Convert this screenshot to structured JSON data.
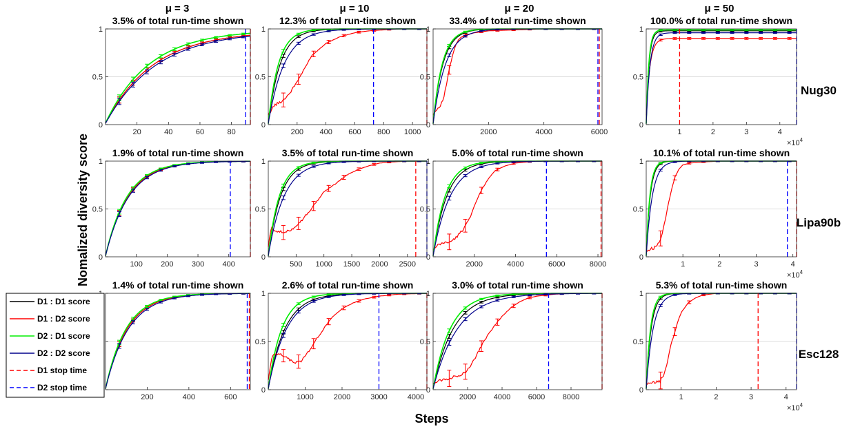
{
  "figure": {
    "ylabel": "Nomalized diversity score",
    "xlabel": "Steps",
    "mu_titles": [
      "μ = 3",
      "μ = 10",
      "μ = 20",
      "μ = 50"
    ],
    "row_labels": [
      "Nug30",
      "Lipa90b",
      "Esc128"
    ],
    "exponent_label": "×10^4",
    "legend": [
      {
        "label": "D1 : D1 score",
        "color": "#000000",
        "style": "solid"
      },
      {
        "label": "D1 : D2 score",
        "color": "#ff0000",
        "style": "solid"
      },
      {
        "label": "D2 : D1 score",
        "color": "#00ee00",
        "style": "solid"
      },
      {
        "label": "D2 : D2 score",
        "color": "#00008b",
        "style": "solid"
      },
      {
        "label": "D1 stop time",
        "color": "#ff0000",
        "style": "dashed"
      },
      {
        "label": "D2 stop time",
        "color": "#0000ff",
        "style": "dashed"
      }
    ],
    "colors": {
      "d1d1": "#000000",
      "d1d2": "#ff0000",
      "d2d1": "#00ee00",
      "d2d2": "#00008b",
      "d1stop": "#ff0000",
      "d2stop": "#0000ff"
    }
  },
  "chart_data": [
    {
      "type": "line",
      "row": 0,
      "col": 0,
      "title": "3.5% of total run-time shown",
      "xlim": [
        0,
        92
      ],
      "xticks": [
        20,
        40,
        60,
        80
      ],
      "ylim": [
        0,
        1
      ],
      "yticks": [
        0,
        0.5,
        1
      ],
      "ytick_labels": [
        "0",
        "0.5",
        "1"
      ],
      "d1_stop": 92,
      "d2_stop": 89,
      "series": [
        {
          "name": "D1 : D1 score",
          "kind": "curve",
          "v": [
            0.015,
            0.98,
            0.033
          ]
        },
        {
          "name": "D1 : D2 score",
          "kind": "curve",
          "v": [
            0.015,
            0.98,
            0.033
          ]
        },
        {
          "name": "D2 : D1 score",
          "kind": "curve",
          "v": [
            0.016,
            0.99,
            0.036
          ]
        },
        {
          "name": "D2 : D2 score",
          "kind": "curve",
          "v": [
            0.012,
            0.98,
            0.031
          ]
        }
      ]
    },
    {
      "type": "line",
      "row": 0,
      "col": 1,
      "title": "12.3% of total run-time shown",
      "xlim": [
        0,
        1100
      ],
      "xticks": [
        200,
        400,
        600,
        800,
        1000
      ],
      "ylim": [
        0,
        1
      ],
      "yticks": [
        0,
        0.5,
        1
      ],
      "ytick_labels": [
        "0",
        "0.5",
        "1"
      ],
      "d1_stop": 1100,
      "d2_stop": 730,
      "series": [
        {
          "name": "D1 : D1 score",
          "kind": "curve",
          "v": [
            0.01,
            1.0,
            0.012
          ]
        },
        {
          "name": "D1 : D2 score",
          "kind": "points",
          "x": [
            0,
            40,
            100,
            150,
            200,
            250,
            300,
            400,
            500,
            600,
            700,
            800,
            900,
            1000,
            1100
          ],
          "y": [
            0.1,
            0.2,
            0.25,
            0.33,
            0.45,
            0.58,
            0.72,
            0.85,
            0.92,
            0.96,
            0.98,
            0.99,
            1.0,
            1.0,
            1.0
          ]
        },
        {
          "name": "D2 : D1 score",
          "kind": "curve",
          "v": [
            0.01,
            1.0,
            0.014
          ]
        },
        {
          "name": "D2 : D2 score",
          "kind": "curve",
          "v": [
            0.01,
            1.0,
            0.009
          ]
        }
      ]
    },
    {
      "type": "line",
      "row": 0,
      "col": 2,
      "title": "33.4% of total run-time shown",
      "xlim": [
        0,
        6100
      ],
      "xticks": [
        2000,
        4000,
        6000
      ],
      "ylim": [
        0,
        1
      ],
      "yticks": [
        0,
        0.5,
        1
      ],
      "ytick_labels": [
        "0",
        "0.5",
        "1"
      ],
      "d1_stop": 6000,
      "d2_stop": 5950,
      "series": [
        {
          "name": "D1 : D1 score",
          "kind": "curve",
          "v": [
            0.01,
            1.0,
            0.0028
          ]
        },
        {
          "name": "D1 : D2 score",
          "kind": "points",
          "x": [
            0,
            100,
            200,
            300,
            400,
            500,
            600,
            700,
            800,
            900,
            1000,
            1200,
            1500,
            2000,
            3000,
            4000,
            6100
          ],
          "y": [
            0.1,
            0.15,
            0.18,
            0.22,
            0.3,
            0.45,
            0.6,
            0.72,
            0.82,
            0.88,
            0.91,
            0.94,
            0.96,
            0.98,
            0.99,
            1.0,
            1.0
          ]
        },
        {
          "name": "D2 : D1 score",
          "kind": "curve",
          "v": [
            0.01,
            1.0,
            0.003
          ]
        },
        {
          "name": "D2 : D2 score",
          "kind": "curve",
          "v": [
            0.01,
            1.0,
            0.0022
          ]
        }
      ]
    },
    {
      "type": "line",
      "row": 0,
      "col": 3,
      "title": "100.0% of total run-time shown",
      "xlim": [
        0,
        45000
      ],
      "xticks": [
        10000,
        20000,
        30000,
        40000
      ],
      "xtick_labels": [
        "1",
        "2",
        "3",
        "4"
      ],
      "ylim": [
        0,
        1
      ],
      "yticks": [
        0,
        0.5,
        1
      ],
      "ytick_labels": [
        "0",
        "0.5",
        "1"
      ],
      "d1_stop": 10000,
      "d2_stop": 45000,
      "exponent": true,
      "series": [
        {
          "name": "D1 : D1 score",
          "kind": "curve",
          "v": [
            0.01,
            0.98,
            0.0012
          ]
        },
        {
          "name": "D1 : D2 score",
          "kind": "curve",
          "v": [
            0.1,
            0.9,
            0.0009
          ]
        },
        {
          "name": "D2 : D1 score",
          "kind": "curve",
          "v": [
            0.01,
            0.99,
            0.0013
          ]
        },
        {
          "name": "D2 : D2 score",
          "kind": "curve",
          "v": [
            0.01,
            0.96,
            0.0009
          ]
        }
      ]
    },
    {
      "type": "line",
      "row": 1,
      "col": 0,
      "title": "1.9% of total run-time shown",
      "xlim": [
        0,
        470
      ],
      "xticks": [
        100,
        200,
        300,
        400
      ],
      "ylim": [
        0,
        1
      ],
      "yticks": [
        0,
        0.5,
        1
      ],
      "ytick_labels": [
        "0",
        "0.5",
        "1"
      ],
      "d1_stop": 470,
      "d2_stop": 405,
      "series": [
        {
          "name": "D1 : D1 score",
          "kind": "curve",
          "v": [
            0.01,
            1.0,
            0.0135
          ]
        },
        {
          "name": "D1 : D2 score",
          "kind": "curve",
          "v": [
            0.01,
            1.0,
            0.0135
          ]
        },
        {
          "name": "D2 : D1 score",
          "kind": "curve",
          "v": [
            0.01,
            1.0,
            0.014
          ]
        },
        {
          "name": "D2 : D2 score",
          "kind": "curve",
          "v": [
            0.01,
            1.0,
            0.013
          ]
        }
      ]
    },
    {
      "type": "line",
      "row": 1,
      "col": 1,
      "title": "3.5% of total run-time shown",
      "xlim": [
        0,
        2850
      ],
      "xticks": [
        500,
        1000,
        1500,
        2000,
        2500
      ],
      "ylim": [
        0,
        1
      ],
      "yticks": [
        0,
        0.5,
        1
      ],
      "ytick_labels": [
        "0",
        "0.5",
        "1"
      ],
      "d1_stop": 2650,
      "d2_stop": 2850,
      "series": [
        {
          "name": "D1 : D1 score",
          "kind": "curve",
          "v": [
            0.01,
            1.0,
            0.0045
          ]
        },
        {
          "name": "D1 : D2 score",
          "kind": "points",
          "x": [
            0,
            50,
            150,
            300,
            450,
            600,
            700,
            800,
            900,
            1000,
            1200,
            1400,
            1600,
            1800,
            2000,
            2200,
            2500,
            2850
          ],
          "y": [
            0.1,
            0.3,
            0.27,
            0.25,
            0.3,
            0.38,
            0.45,
            0.52,
            0.6,
            0.68,
            0.76,
            0.85,
            0.91,
            0.95,
            0.98,
            0.99,
            1.0,
            1.0
          ]
        },
        {
          "name": "D2 : D1 score",
          "kind": "curve",
          "v": [
            0.01,
            1.0,
            0.005
          ]
        },
        {
          "name": "D2 : D2 score",
          "kind": "curve",
          "v": [
            0.01,
            1.0,
            0.0035
          ]
        }
      ]
    },
    {
      "type": "line",
      "row": 1,
      "col": 2,
      "title": "5.0% of total run-time shown",
      "xlim": [
        0,
        8200
      ],
      "xticks": [
        2000,
        4000,
        6000,
        8000
      ],
      "ylim": [
        0,
        1
      ],
      "yticks": [
        0,
        0.5,
        1
      ],
      "ytick_labels": [
        "0",
        "0.5",
        "1"
      ],
      "d1_stop": 8150,
      "d2_stop": 5500,
      "series": [
        {
          "name": "D1 : D1 score",
          "kind": "curve",
          "v": [
            0.01,
            1.0,
            0.0015
          ]
        },
        {
          "name": "D1 : D2 score",
          "kind": "points",
          "x": [
            0,
            300,
            600,
            900,
            1200,
            1500,
            1800,
            2100,
            2400,
            2700,
            3000,
            3500,
            4000,
            4500,
            5000,
            6000,
            8200
          ],
          "y": [
            0.07,
            0.13,
            0.15,
            0.16,
            0.22,
            0.3,
            0.42,
            0.58,
            0.72,
            0.82,
            0.9,
            0.95,
            0.98,
            0.99,
            1.0,
            1.0,
            1.0
          ]
        },
        {
          "name": "D2 : D1 score",
          "kind": "curve",
          "v": [
            0.01,
            1.0,
            0.0017
          ]
        },
        {
          "name": "D2 : D2 score",
          "kind": "curve",
          "v": [
            0.01,
            1.0,
            0.0012
          ]
        }
      ]
    },
    {
      "type": "line",
      "row": 1,
      "col": 3,
      "title": "10.1% of total run-time shown",
      "xlim": [
        0,
        41000
      ],
      "xticks": [
        10000,
        20000,
        30000,
        40000
      ],
      "xtick_labels": [
        "1",
        "2",
        "3",
        "4"
      ],
      "ylim": [
        0,
        1
      ],
      "yticks": [
        0,
        0.5,
        1
      ],
      "ytick_labels": [
        "0",
        "0.5",
        "1"
      ],
      "d1_stop": 41000,
      "d2_stop": 38500,
      "exponent": true,
      "series": [
        {
          "name": "D1 : D1 score",
          "kind": "curve",
          "v": [
            0.01,
            1.0,
            0.0009
          ]
        },
        {
          "name": "D1 : D2 score",
          "kind": "points",
          "x": [
            0,
            1000,
            2000,
            3000,
            4000,
            5000,
            6000,
            7000,
            8000,
            9000,
            10000,
            12000,
            15000,
            20000,
            41000
          ],
          "y": [
            0.05,
            0.08,
            0.09,
            0.12,
            0.2,
            0.35,
            0.55,
            0.72,
            0.85,
            0.92,
            0.96,
            0.98,
            0.99,
            1.0,
            1.0
          ]
        },
        {
          "name": "D2 : D1 score",
          "kind": "curve",
          "v": [
            0.01,
            1.0,
            0.001
          ]
        },
        {
          "name": "D2 : D2 score",
          "kind": "curve",
          "v": [
            0.01,
            1.0,
            0.0006
          ]
        }
      ]
    },
    {
      "type": "line",
      "row": 2,
      "col": 0,
      "title": "1.4% of total run-time shown",
      "xlim": [
        0,
        695
      ],
      "xticks": [
        200,
        400,
        600
      ],
      "ylim": [
        0,
        1
      ],
      "yticks": [
        0,
        0.5,
        1
      ],
      "ytick_labels": [
        "0",
        "0.5",
        "1"
      ],
      "d1_stop": 690,
      "d2_stop": 680,
      "series": [
        {
          "name": "D1 : D1 score",
          "kind": "curve",
          "v": [
            0.01,
            1.0,
            0.0095
          ]
        },
        {
          "name": "D1 : D2 score",
          "kind": "curve",
          "v": [
            0.01,
            1.0,
            0.0095
          ]
        },
        {
          "name": "D2 : D1 score",
          "kind": "curve",
          "v": [
            0.01,
            1.0,
            0.01
          ]
        },
        {
          "name": "D2 : D2 score",
          "kind": "curve",
          "v": [
            0.01,
            1.0,
            0.009
          ]
        }
      ]
    },
    {
      "type": "line",
      "row": 2,
      "col": 1,
      "title": "2.6% of total run-time shown",
      "xlim": [
        0,
        4300
      ],
      "xticks": [
        1000,
        2000,
        3000,
        4000
      ],
      "ylim": [
        0,
        1
      ],
      "yticks": [
        0,
        0.5,
        1
      ],
      "ytick_labels": [
        "0",
        "0.5",
        "1"
      ],
      "d1_stop": 4300,
      "d2_stop": 3000,
      "series": [
        {
          "name": "D1 : D1 score",
          "kind": "curve",
          "v": [
            0.01,
            1.0,
            0.0022
          ]
        },
        {
          "name": "D1 : D2 score",
          "kind": "points",
          "x": [
            0,
            100,
            300,
            500,
            700,
            900,
            1100,
            1300,
            1500,
            1700,
            2000,
            2300,
            2600,
            3000,
            3500,
            4300
          ],
          "y": [
            0.1,
            0.35,
            0.38,
            0.33,
            0.28,
            0.3,
            0.4,
            0.52,
            0.63,
            0.74,
            0.84,
            0.9,
            0.94,
            0.97,
            0.99,
            1.0
          ]
        },
        {
          "name": "D2 : D1 score",
          "kind": "curve",
          "v": [
            0.01,
            1.0,
            0.0027
          ]
        },
        {
          "name": "D2 : D2 score",
          "kind": "curve",
          "v": [
            0.01,
            1.0,
            0.002
          ]
        }
      ]
    },
    {
      "type": "line",
      "row": 2,
      "col": 2,
      "title": "3.0% of total run-time shown",
      "xlim": [
        0,
        9800
      ],
      "xticks": [
        2000,
        4000,
        6000,
        8000
      ],
      "ylim": [
        0,
        1
      ],
      "yticks": [
        0,
        0.5,
        1
      ],
      "ytick_labels": [
        "0",
        "0.5",
        "1"
      ],
      "d1_stop": 9800,
      "d2_stop": 6700,
      "series": [
        {
          "name": "D1 : D1 score",
          "kind": "curve",
          "v": [
            0.01,
            1.0,
            0.00085
          ]
        },
        {
          "name": "D1 : D2 score",
          "kind": "points",
          "x": [
            0,
            500,
            1000,
            1500,
            2000,
            2500,
            3000,
            3500,
            4000,
            4500,
            5000,
            5500,
            6000,
            7000,
            8000,
            9800
          ],
          "y": [
            0.07,
            0.1,
            0.12,
            0.15,
            0.2,
            0.35,
            0.52,
            0.65,
            0.76,
            0.85,
            0.91,
            0.95,
            0.97,
            0.99,
            1.0,
            1.0
          ]
        },
        {
          "name": "D2 : D1 score",
          "kind": "curve",
          "v": [
            0.01,
            1.0,
            0.001
          ]
        },
        {
          "name": "D2 : D2 score",
          "kind": "curve",
          "v": [
            0.01,
            1.0,
            0.0007
          ]
        }
      ]
    },
    {
      "type": "line",
      "row": 2,
      "col": 3,
      "title": "5.3% of total run-time shown",
      "xlim": [
        0,
        43000
      ],
      "xticks": [
        10000,
        20000,
        30000,
        40000
      ],
      "xtick_labels": [
        "1",
        "2",
        "3",
        "4"
      ],
      "ylim": [
        0,
        1
      ],
      "yticks": [
        0,
        0.5,
        1
      ],
      "ytick_labels": [
        "0",
        "0.5",
        "1"
      ],
      "d1_stop": 32000,
      "d2_stop": 43000,
      "exponent": true,
      "series": [
        {
          "name": "D1 : D1 score",
          "kind": "curve",
          "v": [
            0.01,
            1.0,
            0.0007
          ]
        },
        {
          "name": "D1 : D2 score",
          "kind": "points",
          "x": [
            0,
            2000,
            4000,
            5000,
            6000,
            7000,
            8000,
            9000,
            10000,
            12000,
            14000,
            16000,
            18000,
            20000,
            43000
          ],
          "y": [
            0.05,
            0.07,
            0.09,
            0.15,
            0.28,
            0.45,
            0.58,
            0.7,
            0.8,
            0.9,
            0.95,
            0.98,
            0.99,
            1.0,
            1.0
          ]
        },
        {
          "name": "D2 : D1 score",
          "kind": "curve",
          "v": [
            0.01,
            1.0,
            0.0008
          ]
        },
        {
          "name": "D2 : D2 score",
          "kind": "curve",
          "v": [
            0.01,
            1.0,
            0.0005
          ]
        }
      ]
    }
  ]
}
